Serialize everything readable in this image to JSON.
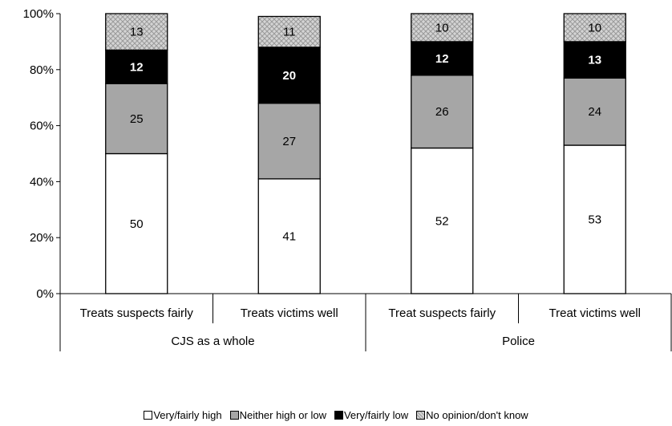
{
  "chart_data": {
    "type": "bar",
    "stacked": true,
    "title": "",
    "xlabel": "",
    "ylabel": "",
    "ylim": [
      0,
      100
    ],
    "yticks": [
      "0%",
      "20%",
      "40%",
      "60%",
      "80%",
      "100%"
    ],
    "categories": [
      "Treats suspects fairly",
      "Treats victims well",
      "Treat suspects fairly",
      "Treat victims well"
    ],
    "groups": [
      {
        "label": "CJS as a whole",
        "categories": [
          0,
          1
        ]
      },
      {
        "label": "Police",
        "categories": [
          2,
          3
        ]
      }
    ],
    "series": [
      {
        "name": "Very/fairly high",
        "values": [
          50,
          41,
          52,
          53
        ],
        "color": "#ffffff",
        "label_color": "#000000"
      },
      {
        "name": "Neither high or low",
        "values": [
          25,
          27,
          26,
          24
        ],
        "color": "#a6a6a6",
        "label_color": "#000000"
      },
      {
        "name": "Very/fairly low",
        "values": [
          12,
          20,
          12,
          13
        ],
        "color": "#000000",
        "label_color": "#ffffff"
      },
      {
        "name": "No opinion/don't know",
        "values": [
          13,
          11,
          10,
          10
        ],
        "color": "#d0d0d0",
        "pattern": "crosshatch",
        "label_color": "#000000"
      }
    ],
    "legend_position": "bottom",
    "grid": false
  }
}
